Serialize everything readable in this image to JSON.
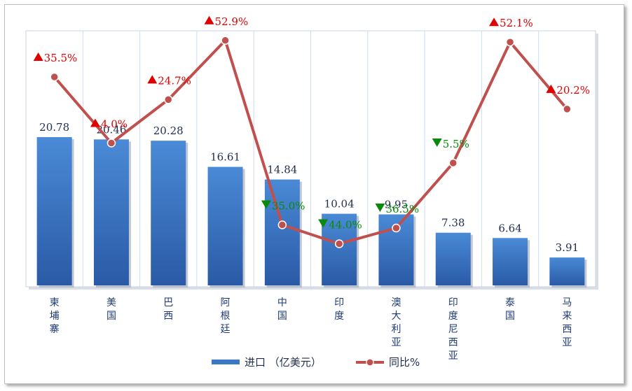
{
  "chart_data": {
    "type": "bar",
    "categories": [
      "柬埔寨",
      "美国",
      "巴西",
      "阿根廷",
      "中国",
      "印度",
      "澳大利亚",
      "印度尼西亚",
      "泰国",
      "马来西亚"
    ],
    "series": [
      {
        "name": "进口 （亿美元）",
        "type": "bar",
        "color": "#3b78c4",
        "values": [
          20.78,
          20.46,
          20.28,
          16.61,
          14.84,
          10.04,
          9.95,
          7.38,
          6.64,
          3.91
        ]
      },
      {
        "name": "同比%",
        "type": "line",
        "color": "#c0504d",
        "values": [
          35.5,
          4.0,
          24.7,
          52.9,
          -35.0,
          -44.0,
          -36.5,
          -5.5,
          52.1,
          20.2
        ],
        "labels": [
          "35.5%",
          "4.0%",
          "24.7%",
          "52.9%",
          "35.0%",
          "44.0%",
          "36.5%",
          "5.5%",
          "52.1%",
          "20.2%"
        ],
        "directions": [
          "up",
          "up",
          "up",
          "up",
          "down",
          "down",
          "down",
          "down",
          "up",
          "up"
        ]
      }
    ],
    "bar_value_labels": [
      "20.78",
      "20.46",
      "20.28",
      "16.61",
      "14.84",
      "10.04",
      "9.95",
      "7.38",
      "6.64",
      "3.91"
    ],
    "grid": false,
    "legend_position": "bottom"
  }
}
